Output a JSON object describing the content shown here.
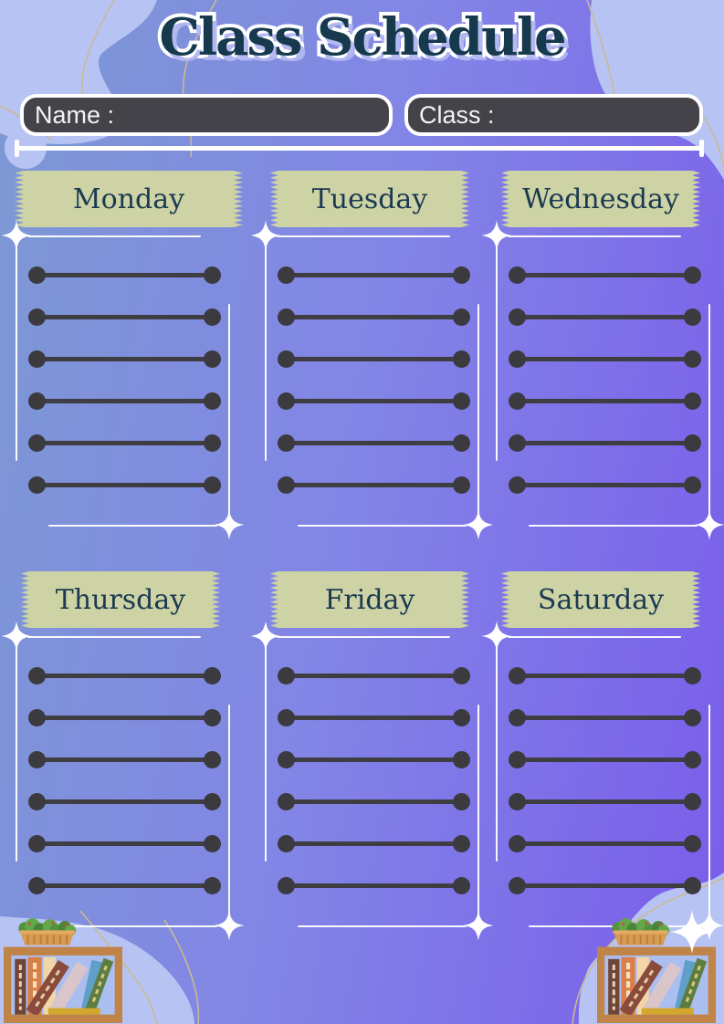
{
  "title": "Class Schedule",
  "form": {
    "name_label": "Name :",
    "name_value": "",
    "class_label": "Class :",
    "class_value": ""
  },
  "days": [
    {
      "label": "Monday",
      "slots": 6
    },
    {
      "label": "Tuesday",
      "slots": 6
    },
    {
      "label": "Wednesday",
      "slots": 6
    },
    {
      "label": "Thursday",
      "slots": 6
    },
    {
      "label": "Friday",
      "slots": 6
    },
    {
      "label": "Saturday",
      "slots": 6
    }
  ],
  "decor": {
    "sparkle_icon": "four-point-star",
    "bookshelf_icon": "bookshelf-with-plants",
    "ribbon_style": "zigzag-washi-tape"
  },
  "colors": {
    "background_blue": "#7d99d3",
    "background_purple": "#7a5ceb",
    "blob_lavender": "#b7c3f3",
    "ribbon_beige": "#cdd3a4",
    "title_navy": "#16394e",
    "field_dark": "#444349",
    "line_dark": "#3e3d42",
    "frame_white": "#ffffff",
    "curve_tan": "#c9ba92",
    "shelf_wood": "#c08448"
  }
}
